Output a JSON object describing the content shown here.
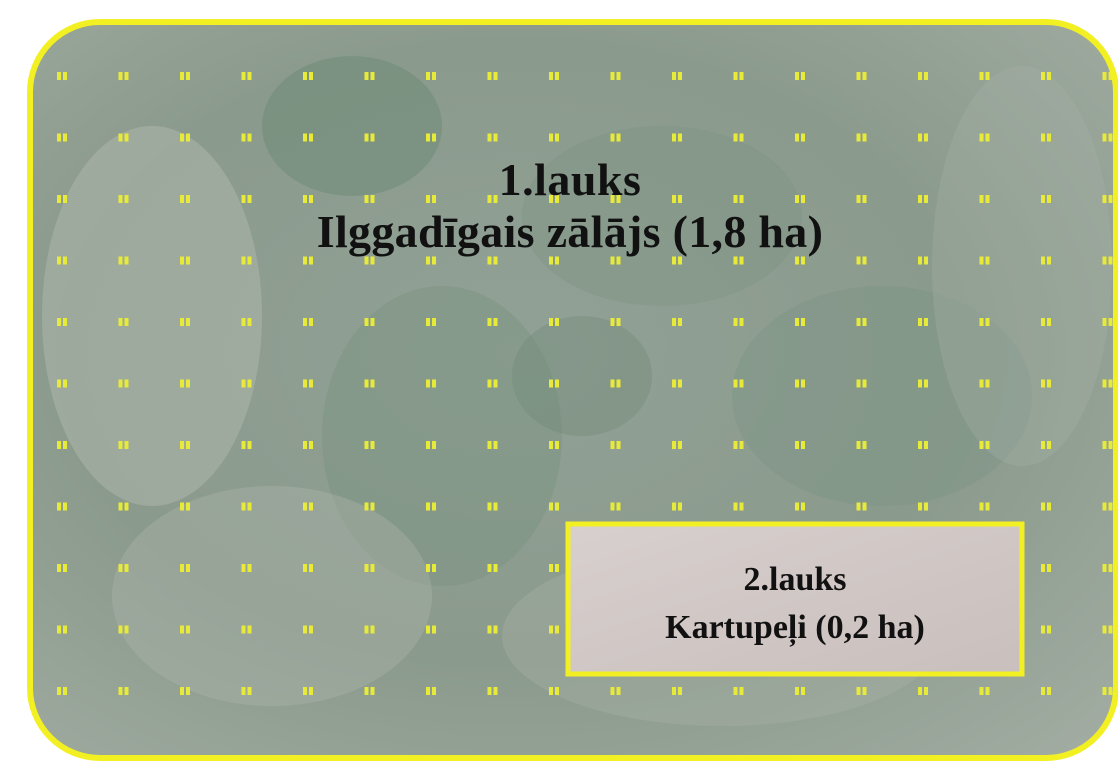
{
  "fields": [
    {
      "id": "1.lauks",
      "title": "1.lauks",
      "crop": "Ilggadīgais zālājs (1,8 ha)",
      "area_ha": 1.8
    },
    {
      "id": "2.lauks",
      "title": "2.lauks",
      "crop": "Kartupeļi (0,2 ha)",
      "area_ha": 0.2
    }
  ],
  "colors": {
    "boundary": "#f2f022",
    "sample_points": "#e8ea3a",
    "grass": "#8c9c8c",
    "potato_plot": "#d2c8c6"
  },
  "icons": {
    "sample_point": "sample-point-marker"
  }
}
